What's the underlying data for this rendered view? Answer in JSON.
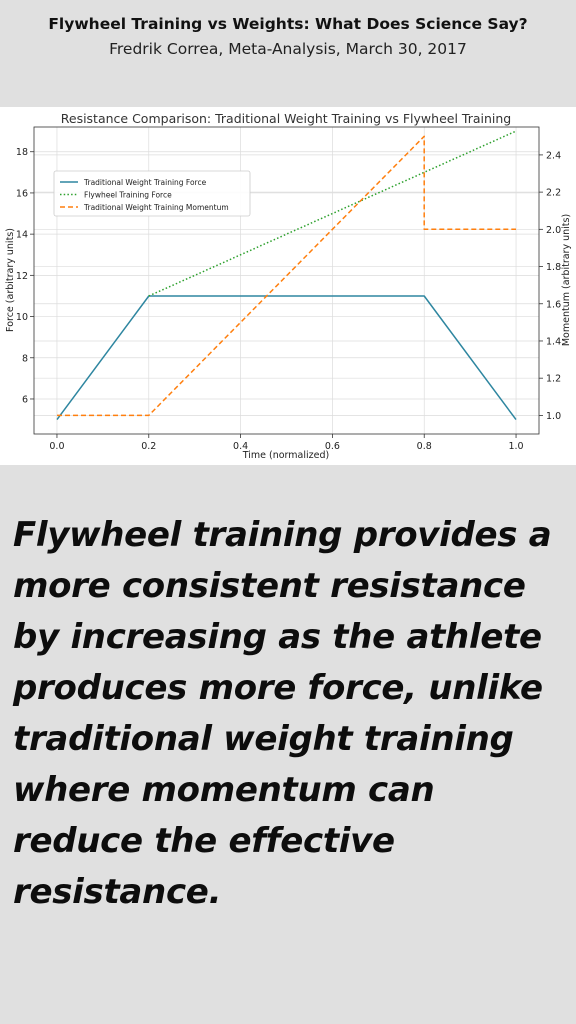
{
  "header": {
    "title": "Flywheel Training vs Weights: What Does Science Say?",
    "subtitle": "Fredrik Correa, Meta-Analysis, March 30, 2017"
  },
  "statement": "Flywheel training provides a more consistent resistance by increasing as the athlete produces more force, unlike traditional weight training where momentum can reduce the effective resistance.",
  "chart_data": {
    "type": "line",
    "title": "Resistance Comparison: Traditional Weight Training vs Flywheel Training",
    "xlabel": "Time (normalized)",
    "ylabel": "Force (arbitrary units)",
    "y2label": "Momentum (arbitrary units)",
    "xlim": [
      -0.05,
      1.05
    ],
    "ylim": [
      4.3,
      19.2
    ],
    "y2lim": [
      0.9,
      2.55
    ],
    "xticks": [
      0.0,
      0.2,
      0.4,
      0.6,
      0.8,
      1.0
    ],
    "xtick_labels": [
      "0.0",
      "0.2",
      "0.4",
      "0.6",
      "0.8",
      "1.0"
    ],
    "yticks": [
      6,
      8,
      10,
      12,
      14,
      16,
      18
    ],
    "ytick_labels": [
      "6",
      "8",
      "10",
      "12",
      "14",
      "16",
      "18"
    ],
    "y2ticks": [
      1.0,
      1.2,
      1.4,
      1.6,
      1.8,
      2.0,
      2.2,
      2.4
    ],
    "y2tick_labels": [
      "1.0",
      "1.2",
      "1.4",
      "1.6",
      "1.8",
      "2.0",
      "2.2",
      "2.4"
    ],
    "grid": true,
    "legend_position": "upper-left",
    "series": [
      {
        "name": "Traditional Weight Training Force",
        "axis": "left",
        "style": "solid",
        "color": "#2e86a0",
        "x": [
          0.0,
          0.2,
          0.8,
          1.0
        ],
        "y": [
          5,
          11,
          11,
          5
        ]
      },
      {
        "name": "Flywheel Training Force",
        "axis": "left",
        "style": "dotted",
        "color": "#2ca02c",
        "x": [
          0.2,
          1.0
        ],
        "y": [
          11,
          19
        ]
      },
      {
        "name": "Traditional Weight Training Momentum",
        "axis": "right",
        "style": "dashed",
        "color": "#ff7f0e",
        "x": [
          0.0,
          0.2,
          0.8,
          0.8,
          1.0
        ],
        "y": [
          1.0,
          1.0,
          2.5,
          2.0,
          2.0
        ]
      }
    ]
  }
}
